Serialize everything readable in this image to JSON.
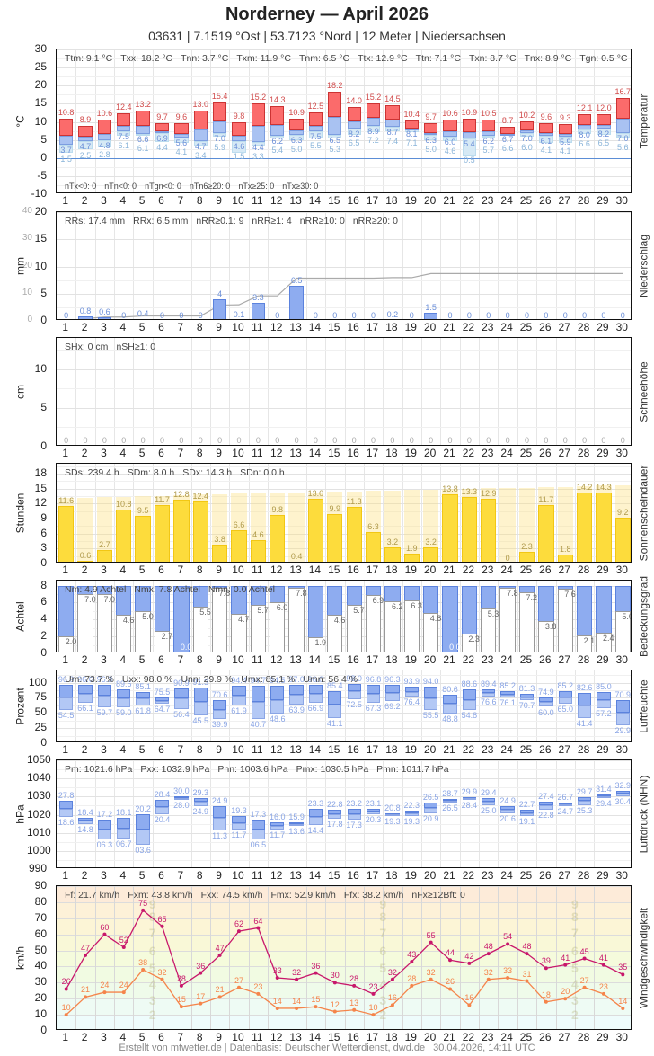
{
  "header": {
    "title": "Norderney  —  April 2026",
    "subtitle": "03631  |  7.1519 °Ost  |  53.7123 °Nord  |  12 Meter  |  Niedersachsen"
  },
  "days": [
    "1",
    "2",
    "3",
    "4",
    "5",
    "6",
    "7",
    "8",
    "9",
    "10",
    "11",
    "12",
    "13",
    "14",
    "15",
    "16",
    "17",
    "18",
    "19",
    "20",
    "21",
    "22",
    "23",
    "24",
    "25",
    "26",
    "27",
    "28",
    "29",
    "30"
  ],
  "panels": {
    "temperature": {
      "side_label": "Temperatur",
      "unit": "°C",
      "yticks": [
        "30",
        "25",
        "20",
        "15",
        "10",
        "5",
        "0",
        "-5",
        "-10"
      ],
      "stats": [
        "Ttm: 9.1 °C",
        "Txx: 18.2 °C",
        "Tnn: 3.7 °C",
        "Txm: 11.9 °C",
        "Tnm: 6.5 °C",
        "Ttx: 12.9 °C",
        "Ttn: 7.1 °C",
        "Txn: 8.7 °C",
        "Tnx: 8.9 °C",
        "Tgn: 0.5 °C"
      ],
      "stats_bottom": [
        "nTx<0: 0",
        "nTn<0: 0",
        "nTgn<0: 0",
        "nTn6≥20: 0",
        "nTx≥25: 0",
        "nTx≥30: 0"
      ]
    },
    "precipitation": {
      "side_label": "Niederschlag",
      "unit": "mm",
      "yticks": [
        "20",
        "15",
        "10",
        "5",
        "0"
      ],
      "yticks_cum": [
        "40",
        "30",
        "20",
        "10",
        "0"
      ],
      "stats": [
        "RRs: 17.4 mm",
        "RRx: 6.5 mm",
        "nRR≥0.1: 9",
        "nRR≥1: 4",
        "nRR≥10: 0",
        "nRR≥20: 0"
      ]
    },
    "snow": {
      "side_label": "Schneehöhe",
      "unit": "cm",
      "yticks": [
        "10",
        "5",
        "0"
      ],
      "stats": [
        "SHx: 0 cm",
        "nSH≥1: 0"
      ]
    },
    "sunshine": {
      "side_label": "Sonnenscheindauer",
      "unit": "Stunden",
      "yticks": [
        "18",
        "15",
        "12",
        "9",
        "6",
        "3",
        "0"
      ],
      "stats": [
        "SDs: 239.4 h",
        "SDm: 8.0 h",
        "SDx: 14.3 h",
        "SDn: 0.0 h"
      ]
    },
    "cloud": {
      "side_label": "Bedeckungsgrad",
      "unit": "Achtel",
      "yticks": [
        "8",
        "6",
        "4",
        "2",
        "0"
      ],
      "stats": [
        "Nm: 4.9 Achtel",
        "Nmx: 7.8 Achtel",
        "Nmn: 0.0 Achtel"
      ]
    },
    "humidity": {
      "side_label": "Luftfeuchte",
      "unit": "Prozent",
      "yticks": [
        "100",
        "75",
        "50",
        "25",
        "0"
      ],
      "stats": [
        "Um: 73.7 %",
        "Uxx: 98.0 %",
        "Unn: 29.9 %",
        "Umx: 85.1 %",
        "Umn: 56.4 %"
      ]
    },
    "pressure": {
      "side_label": "Luftdruck (NHN)",
      "unit": "hPa",
      "yticks": [
        "1050",
        "1040",
        "1030",
        "1020",
        "1010",
        "1000",
        "990"
      ],
      "stats": [
        "Pm: 1021.6 hPa",
        "Pxx: 1032.9 hPa",
        "Pnn: 1003.6 hPa",
        "Pmx: 1030.5 hPa",
        "Pmn: 1011.7 hPa"
      ]
    },
    "wind": {
      "side_label": "Windgeschwindigkeit",
      "unit": "km/h",
      "yticks": [
        "90",
        "80",
        "70",
        "60",
        "50",
        "40",
        "30",
        "20",
        "10",
        "0"
      ],
      "stats": [
        "Ff: 21.7 km/h",
        "Fxm: 43.8 km/h",
        "Fxx: 74.5 km/h",
        "Fmx: 52.9 km/h",
        "Ffx: 38.2 km/h",
        "nFx≥12Bft: 0"
      ],
      "beaufort": [
        "9",
        "8",
        "7",
        "6",
        "5",
        "4",
        "3",
        "2"
      ]
    }
  },
  "footer": "Erstellt von mtwetter.de | Datenbasis: Deutscher Wetterdienst, dwd.de | 30.04.2026, 14:11 UTC",
  "chart_data": [
    {
      "type": "bar",
      "title": "Temperatur",
      "ylabel": "°C",
      "ylim": [
        -10,
        30
      ],
      "categories": [
        "1",
        "2",
        "3",
        "4",
        "5",
        "6",
        "7",
        "8",
        "9",
        "10",
        "11",
        "12",
        "13",
        "14",
        "15",
        "16",
        "17",
        "18",
        "19",
        "20",
        "21",
        "22",
        "23",
        "24",
        "25",
        "26",
        "27",
        "28",
        "29",
        "30"
      ],
      "series": [
        {
          "name": "Tx (max)",
          "values": [
            10.8,
            8.9,
            10.6,
            12.4,
            13.2,
            9.7,
            9.6,
            13.0,
            15.4,
            9.8,
            15.2,
            14.3,
            10.9,
            12.5,
            18.2,
            14.0,
            15.2,
            14.5,
            10.4,
            9.7,
            10.6,
            10.9,
            10.5,
            8.7,
            10.2,
            9.6,
            9.3,
            12.1,
            12.0,
            16.7
          ]
        },
        {
          "name": "Tn (min)",
          "values": [
            3.7,
            4.7,
            4.8,
            7.5,
            6.6,
            6.9,
            5.6,
            4.7,
            7.0,
            4.6,
            4.4,
            6.2,
            6.3,
            7.5,
            6.5,
            8.2,
            8.9,
            8.7,
            8.1,
            6.3,
            6.0,
            5.4,
            6.2,
            6.7,
            7.0,
            6.1,
            5.9,
            8.0,
            8.2,
            7.0
          ]
        },
        {
          "name": "Tg (ground min)",
          "values": [
            1.5,
            2.5,
            2.8,
            6.1,
            6.1,
            4.4,
            4.1,
            3.4,
            5.9,
            1.5,
            3.3,
            5.4,
            5.0,
            5.5,
            5.3,
            6.5,
            7.2,
            7.4,
            7.1,
            5.0,
            4.6,
            0.5,
            5.7,
            6.6,
            6.0,
            4.1,
            4.1,
            6.6,
            6.5,
            5.6
          ]
        }
      ]
    },
    {
      "type": "bar",
      "title": "Niederschlag",
      "ylabel": "mm",
      "ylim": [
        0,
        20
      ],
      "y2lim": [
        0,
        40
      ],
      "categories": [
        "1",
        "2",
        "3",
        "4",
        "5",
        "6",
        "7",
        "8",
        "9",
        "10",
        "11",
        "12",
        "13",
        "14",
        "15",
        "16",
        "17",
        "18",
        "19",
        "20",
        "21",
        "22",
        "23",
        "24",
        "25",
        "26",
        "27",
        "28",
        "29",
        "30"
      ],
      "series": [
        {
          "name": "RR daily",
          "values": [
            0,
            0.8,
            0.6,
            0,
            0.4,
            0,
            0,
            0,
            4.0,
            0.1,
            3.3,
            0,
            6.5,
            0,
            0,
            0,
            0,
            0.2,
            0,
            1.5,
            0,
            0,
            0,
            0,
            0,
            0,
            0,
            0,
            0,
            0
          ]
        },
        {
          "name": "RR cumulative",
          "values": [
            0,
            0.8,
            1.4,
            1.4,
            1.8,
            1.8,
            1.8,
            1.8,
            5.8,
            5.9,
            9.2,
            9.2,
            15.7,
            15.7,
            15.7,
            15.7,
            15.7,
            15.9,
            15.9,
            17.4,
            17.4,
            17.4,
            17.4,
            17.4,
            17.4,
            17.4,
            17.4,
            17.4,
            17.4,
            17.4
          ]
        }
      ]
    },
    {
      "type": "bar",
      "title": "Schneehöhe",
      "ylabel": "cm",
      "ylim": [
        0,
        14
      ],
      "categories": [
        "1",
        "2",
        "3",
        "4",
        "5",
        "6",
        "7",
        "8",
        "9",
        "10",
        "11",
        "12",
        "13",
        "14",
        "15",
        "16",
        "17",
        "18",
        "19",
        "20",
        "21",
        "22",
        "23",
        "24",
        "25",
        "26",
        "27",
        "28",
        "29",
        "30"
      ],
      "values": [
        0,
        0,
        0,
        0,
        0,
        0,
        0,
        0,
        0,
        0,
        0,
        0,
        0,
        0,
        0,
        0,
        0,
        0,
        0,
        0,
        0,
        0,
        0,
        0,
        0,
        0,
        0,
        0,
        0,
        0
      ]
    },
    {
      "type": "bar",
      "title": "Sonnenscheindauer",
      "ylabel": "Stunden",
      "ylim": [
        0,
        20
      ],
      "categories": [
        "1",
        "2",
        "3",
        "4",
        "5",
        "6",
        "7",
        "8",
        "9",
        "10",
        "11",
        "12",
        "13",
        "14",
        "15",
        "16",
        "17",
        "18",
        "19",
        "20",
        "21",
        "22",
        "23",
        "24",
        "25",
        "26",
        "27",
        "28",
        "29",
        "30"
      ],
      "series": [
        {
          "name": "SD",
          "values": [
            11.6,
            0.6,
            2.7,
            10.8,
            9.5,
            11.7,
            12.8,
            12.4,
            3.8,
            6.6,
            4.6,
            9.8,
            0.4,
            13.0,
            9.9,
            11.3,
            6.3,
            3.2,
            1.9,
            3.2,
            13.8,
            13.3,
            12.9,
            0,
            2.3,
            11.7,
            1.8,
            14.2,
            14.3,
            9.2
          ]
        },
        {
          "name": "SD possible",
          "values": [
            13.2,
            13.2,
            13.3,
            13.4,
            13.5,
            13.6,
            13.7,
            13.8,
            13.9,
            14.0,
            14.0,
            14.1,
            14.2,
            14.3,
            14.4,
            14.5,
            14.6,
            14.6,
            14.7,
            14.8,
            14.9,
            15.0,
            15.1,
            15.2,
            15.2,
            15.3,
            15.4,
            15.5,
            15.6,
            15.7
          ]
        }
      ]
    },
    {
      "type": "bar",
      "title": "Bedeckungsgrad",
      "ylabel": "Achtel",
      "ylim": [
        0,
        8.6
      ],
      "categories": [
        "1",
        "2",
        "3",
        "4",
        "5",
        "6",
        "7",
        "8",
        "9",
        "10",
        "11",
        "12",
        "13",
        "14",
        "15",
        "16",
        "17",
        "18",
        "19",
        "20",
        "21",
        "22",
        "23",
        "24",
        "25",
        "26",
        "27",
        "28",
        "29",
        "30"
      ],
      "values": [
        2.0,
        7.0,
        7.0,
        4.6,
        5.0,
        2.7,
        0.0,
        5.5,
        7.8,
        4.7,
        5.7,
        6.0,
        7.8,
        1.9,
        4.6,
        5.7,
        6.9,
        6.2,
        6.3,
        4.8,
        0.0,
        2.3,
        5.3,
        7.8,
        7.2,
        3.8,
        7.6,
        2.1,
        2.4,
        5.0
      ]
    },
    {
      "type": "bar",
      "title": "Luftfeuchte",
      "ylabel": "Prozent",
      "ylim": [
        0,
        120
      ],
      "categories": [
        "1",
        "2",
        "3",
        "4",
        "5",
        "6",
        "7",
        "8",
        "9",
        "10",
        "11",
        "12",
        "13",
        "14",
        "15",
        "16",
        "17",
        "18",
        "19",
        "20",
        "21",
        "22",
        "23",
        "24",
        "25",
        "26",
        "27",
        "28",
        "29",
        "30"
      ],
      "series": [
        {
          "name": "U max",
          "values": [
            96.9,
            96.6,
            96.3,
            89.6,
            85.1,
            75.5,
            90.9,
            91.3,
            70.6,
            94.4,
            94.7,
            94.5,
            97.0,
            96.0,
            85.4,
            98.0,
            96.8,
            96.3,
            93.9,
            94.0,
            80.6,
            88.6,
            89.4,
            85.2,
            81.3,
            74.9,
            85.2,
            82.6,
            85.0,
            70.9
          ]
        },
        {
          "name": "U min",
          "values": [
            54.5,
            66.1,
            59.7,
            59.0,
            61.8,
            64.7,
            56.4,
            45.5,
            39.9,
            61.9,
            40.7,
            48.6,
            63.9,
            66.9,
            41.1,
            72.5,
            67.3,
            69.2,
            76.4,
            55.5,
            48.8,
            54.8,
            76.6,
            76.1,
            70.7,
            60.0,
            65.0,
            41.4,
            57.2,
            29.9
          ]
        }
      ]
    },
    {
      "type": "bar",
      "title": "Luftdruck (NHN)",
      "ylabel": "hPa",
      "ylim": [
        990,
        1050
      ],
      "categories": [
        "1",
        "2",
        "3",
        "4",
        "5",
        "6",
        "7",
        "8",
        "9",
        "10",
        "11",
        "12",
        "13",
        "14",
        "15",
        "16",
        "17",
        "18",
        "19",
        "20",
        "21",
        "22",
        "23",
        "24",
        "25",
        "26",
        "27",
        "28",
        "29",
        "30"
      ],
      "series": [
        {
          "name": "P max",
          "values": [
            1027.8,
            1018.4,
            1017.2,
            1018.1,
            1020.2,
            1028.4,
            1030.0,
            1029.3,
            1024.9,
            1019.3,
            1017.3,
            1016.0,
            1015.9,
            1023.3,
            1022.8,
            1023.2,
            1023.1,
            1020.8,
            1022.3,
            1026.5,
            1028.7,
            1029.9,
            1029.4,
            1024.9,
            1022.7,
            1027.4,
            1026.7,
            1029.7,
            1031.4,
            1032.9
          ]
        },
        {
          "name": "P min",
          "values": [
            1018.6,
            1014.8,
            1006.3,
            1006.7,
            1003.6,
            1020.4,
            1028.0,
            1024.9,
            1011.3,
            1011.7,
            1006.5,
            1011.7,
            1013.6,
            1014.4,
            1017.8,
            1017.3,
            1020.3,
            1019.3,
            1019.3,
            1020.9,
            1026.5,
            1028.4,
            1025.0,
            1020.6,
            1019.1,
            1022.8,
            1024.7,
            1025.3,
            1029.4,
            1030.4
          ]
        }
      ]
    },
    {
      "type": "line",
      "title": "Windgeschwindigkeit",
      "ylabel": "km/h",
      "ylim": [
        0,
        90
      ],
      "categories": [
        "1",
        "2",
        "3",
        "4",
        "5",
        "6",
        "7",
        "8",
        "9",
        "10",
        "11",
        "12",
        "13",
        "14",
        "15",
        "16",
        "17",
        "18",
        "19",
        "20",
        "21",
        "22",
        "23",
        "24",
        "25",
        "26",
        "27",
        "28",
        "29",
        "30"
      ],
      "series": [
        {
          "name": "Fx (gusts)",
          "values": [
            26,
            47,
            60,
            52,
            75,
            65,
            28,
            36,
            47,
            62,
            64,
            33,
            32,
            36,
            30,
            28,
            23,
            32,
            43,
            55,
            44,
            42,
            48,
            54,
            48,
            39,
            41,
            45,
            41,
            35
          ]
        },
        {
          "name": "Fm (mean)",
          "values": [
            10,
            21,
            24,
            24,
            38,
            32,
            15,
            17,
            21,
            27,
            23,
            14,
            14,
            15,
            12,
            13,
            10,
            16,
            28,
            32,
            26,
            16,
            32,
            33,
            31,
            18,
            20,
            27,
            23,
            14
          ]
        }
      ]
    }
  ]
}
